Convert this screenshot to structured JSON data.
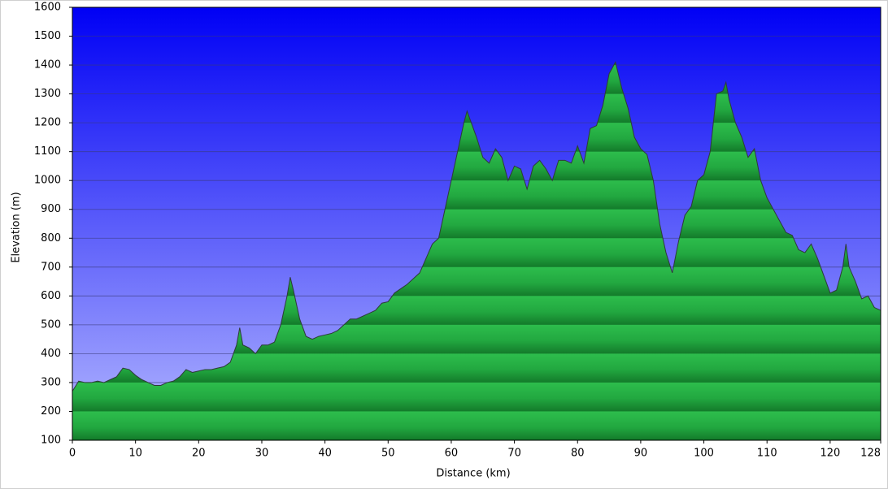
{
  "chart_data": {
    "type": "area",
    "x_label": "Distance   (km)",
    "y_label": "Elevation (m)",
    "x": [
      0,
      1,
      2,
      3,
      4,
      5,
      6,
      7,
      8,
      9,
      10,
      11,
      12,
      13,
      14,
      15,
      16,
      17,
      18,
      19,
      20,
      21,
      22,
      23,
      24,
      25,
      26,
      26.5,
      27,
      28,
      29,
      30,
      31,
      32,
      33,
      34,
      34.5,
      35,
      36,
      37,
      38,
      39,
      40,
      41,
      42,
      43,
      44,
      45,
      46,
      47,
      48,
      49,
      50,
      51,
      52,
      53,
      54,
      55,
      56,
      57,
      58,
      59,
      60,
      61,
      62,
      62.5,
      63,
      64,
      65,
      66,
      67,
      68,
      69,
      70,
      71,
      72,
      73,
      74,
      75,
      76,
      77,
      78,
      79,
      80,
      81,
      82,
      83,
      84,
      85,
      86,
      87,
      88,
      89,
      90,
      91,
      92,
      93,
      94,
      95,
      96,
      97,
      98,
      99,
      100,
      101,
      102,
      103,
      103.5,
      104,
      105,
      106,
      107,
      108,
      109,
      110,
      111,
      112,
      113,
      114,
      115,
      116,
      117,
      118,
      119,
      120,
      121,
      122,
      122.5,
      123,
      124,
      125,
      126,
      127,
      128
    ],
    "series": [
      {
        "color": "#2db84a",
        "values": [
          270,
          305,
          300,
          300,
          305,
          300,
          310,
          320,
          350,
          345,
          325,
          310,
          300,
          290,
          290,
          300,
          305,
          320,
          345,
          335,
          340,
          345,
          345,
          350,
          355,
          370,
          430,
          490,
          430,
          420,
          400,
          430,
          430,
          440,
          500,
          600,
          665,
          620,
          520,
          460,
          450,
          460,
          465,
          470,
          480,
          500,
          520,
          520,
          530,
          540,
          550,
          575,
          580,
          610,
          625,
          640,
          660,
          680,
          730,
          780,
          800,
          900,
          1000,
          1100,
          1200,
          1240,
          1210,
          1150,
          1080,
          1060,
          1110,
          1080,
          1000,
          1050,
          1040,
          970,
          1050,
          1070,
          1040,
          1000,
          1070,
          1070,
          1060,
          1120,
          1060,
          1180,
          1190,
          1260,
          1370,
          1410,
          1320,
          1250,
          1150,
          1110,
          1090,
          1000,
          850,
          750,
          680,
          790,
          880,
          910,
          1000,
          1020,
          1100,
          1300,
          1310,
          1340,
          1280,
          1200,
          1150,
          1080,
          1110,
          1000,
          940,
          900,
          860,
          820,
          810,
          760,
          750,
          780,
          730,
          670,
          610,
          620,
          700,
          780,
          700,
          650,
          590,
          600,
          560,
          550
        ]
      }
    ],
    "xlim": [
      0,
      128
    ],
    "ylim": [
      100,
      1600
    ],
    "xticks": [
      0,
      10,
      20,
      30,
      40,
      50,
      60,
      70,
      80,
      90,
      100,
      110,
      120,
      128
    ],
    "yticks": [
      100,
      200,
      300,
      400,
      500,
      600,
      700,
      800,
      900,
      1000,
      1100,
      1200,
      1300,
      1400,
      1500,
      1600
    ],
    "grid": true
  }
}
